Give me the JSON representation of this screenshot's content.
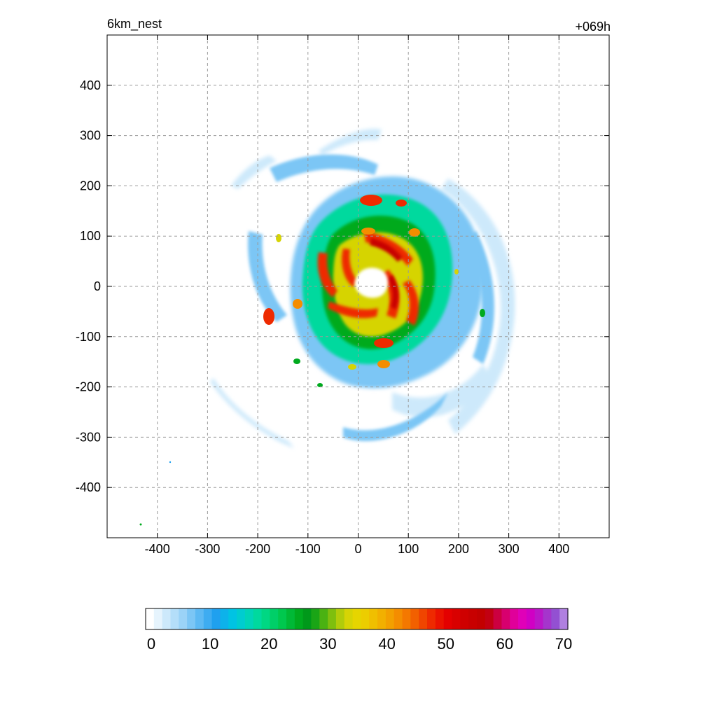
{
  "header": {
    "left_title": "6km_nest",
    "right_title": "+069h"
  },
  "chart_data": {
    "type": "heatmap",
    "xlim": [
      -500,
      500
    ],
    "ylim": [
      -500,
      500
    ],
    "x_ticks": [
      -400,
      -300,
      -200,
      -100,
      0,
      100,
      200,
      300,
      400
    ],
    "y_ticks": [
      400,
      300,
      200,
      100,
      0,
      -100,
      -200,
      -300,
      -400
    ],
    "x_tick_labels": [
      "-400",
      "-300",
      "-200",
      "-100",
      "0",
      "100",
      "200",
      "300",
      "400"
    ],
    "y_tick_labels": [
      "400",
      "300",
      "200",
      "100",
      "0",
      "-100",
      "-200",
      "-300",
      "-400"
    ],
    "grid": true,
    "grid_style": "dashed",
    "colorbar": {
      "placement": "bottom",
      "min": 0,
      "max": 70,
      "ticks": [
        "0",
        "10",
        "20",
        "30",
        "40",
        "50",
        "60",
        "70"
      ],
      "colors": [
        "#ffffff",
        "#e6f4fd",
        "#cde9fb",
        "#b4def9",
        "#9bd3f7",
        "#7cc6f5",
        "#5db9f3",
        "#3eacf1",
        "#1fa0ef",
        "#0db2ea",
        "#00c3e3",
        "#00ccd0",
        "#00d4b8",
        "#00d99e",
        "#00d783",
        "#00cf68",
        "#00c84e",
        "#00b936",
        "#00aa1e",
        "#00991a",
        "#1aa516",
        "#4ab212",
        "#7ebf0e",
        "#b1cc0a",
        "#d6d405",
        "#e6d500",
        "#eccd00",
        "#f0bf00",
        "#f2b000",
        "#f3a000",
        "#f48d00",
        "#f47800",
        "#f26000",
        "#f04500",
        "#ee2a00",
        "#ea1200",
        "#e40000",
        "#d90000",
        "#cf0000",
        "#c80000",
        "#c20000",
        "#c20012",
        "#cc0040",
        "#d8006e",
        "#e0009a",
        "#e000b8",
        "#d000c4",
        "#bb16c8",
        "#a535cc",
        "#9350d2",
        "#b080e0"
      ]
    },
    "field_description_values": {
      "storm_center": [
        20,
        0
      ],
      "max_value": 55
    }
  }
}
